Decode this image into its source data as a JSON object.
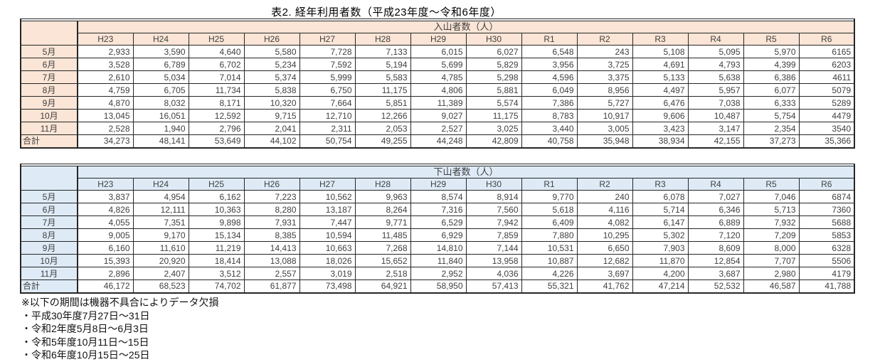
{
  "title": "表2. 経年利用者数（平成23年度～令和6年度）",
  "columns": [
    "H23",
    "H24",
    "H25",
    "H26",
    "H27",
    "H28",
    "H29",
    "H30",
    "R1",
    "R2",
    "R3",
    "R4",
    "R5",
    "R6"
  ],
  "tables": [
    {
      "title": "入山者数（人）",
      "rows": [
        {
          "label": "5月",
          "values": [
            "2,933",
            "3,590",
            "4,640",
            "5,580",
            "7,728",
            "7,133",
            "6,015",
            "6,027",
            "6,548",
            "243",
            "5,108",
            "5,095",
            "5,970",
            "6165"
          ]
        },
        {
          "label": "6月",
          "values": [
            "3,528",
            "6,789",
            "6,702",
            "5,234",
            "7,592",
            "5,194",
            "5,699",
            "5,829",
            "3,956",
            "3,725",
            "4,691",
            "4,793",
            "4,399",
            "6203"
          ]
        },
        {
          "label": "7月",
          "values": [
            "2,610",
            "5,034",
            "7,014",
            "5,374",
            "5,999",
            "5,583",
            "4,785",
            "5,298",
            "4,596",
            "3,375",
            "5,133",
            "5,638",
            "6,386",
            "4611"
          ]
        },
        {
          "label": "8月",
          "values": [
            "4,759",
            "6,705",
            "11,734",
            "5,838",
            "6,750",
            "11,175",
            "4,806",
            "5,881",
            "6,049",
            "8,956",
            "4,497",
            "5,957",
            "6,077",
            "5079"
          ]
        },
        {
          "label": "9月",
          "values": [
            "4,870",
            "8,032",
            "8,171",
            "10,320",
            "7,664",
            "5,851",
            "11,389",
            "5,574",
            "7,386",
            "5,727",
            "6,476",
            "7,038",
            "6,333",
            "5289"
          ]
        },
        {
          "label": "10月",
          "values": [
            "13,045",
            "16,051",
            "12,592",
            "9,715",
            "12,710",
            "12,266",
            "9,027",
            "11,175",
            "8,783",
            "10,917",
            "9,606",
            "10,487",
            "5,754",
            "4479"
          ]
        },
        {
          "label": "11月",
          "values": [
            "2,528",
            "1,940",
            "2,796",
            "2,041",
            "2,311",
            "2,053",
            "2,527",
            "3,025",
            "3,440",
            "3,005",
            "3,423",
            "3,147",
            "2,354",
            "3540"
          ]
        },
        {
          "label": "合計",
          "values": [
            "34,273",
            "48,141",
            "53,649",
            "44,102",
            "50,754",
            "49,255",
            "44,248",
            "42,809",
            "40,758",
            "35,948",
            "38,934",
            "42,155",
            "37,273",
            "35,366"
          ]
        }
      ]
    },
    {
      "title": "下山者数（人）",
      "rows": [
        {
          "label": "5月",
          "values": [
            "3,837",
            "4,954",
            "6,162",
            "7,223",
            "10,562",
            "9,963",
            "8,574",
            "8,914",
            "9,770",
            "240",
            "6,078",
            "7,027",
            "7,046",
            "6874"
          ]
        },
        {
          "label": "6月",
          "values": [
            "4,826",
            "12,111",
            "10,363",
            "8,280",
            "13,187",
            "8,264",
            "7,316",
            "7,560",
            "5,618",
            "4,116",
            "5,714",
            "6,346",
            "5,713",
            "7360"
          ]
        },
        {
          "label": "7月",
          "values": [
            "4,055",
            "7,351",
            "9,898",
            "7,931",
            "7,447",
            "9,771",
            "6,529",
            "7,942",
            "6,409",
            "4,082",
            "6,147",
            "6,889",
            "7,932",
            "5688"
          ]
        },
        {
          "label": "8月",
          "values": [
            "9,005",
            "9,170",
            "15,134",
            "8,385",
            "10,594",
            "11,485",
            "6,929",
            "7,859",
            "7,880",
            "10,295",
            "5,302",
            "7,120",
            "7,209",
            "5853"
          ]
        },
        {
          "label": "9月",
          "values": [
            "6,160",
            "11,610",
            "11,219",
            "14,413",
            "10,663",
            "7,268",
            "14,810",
            "7,144",
            "10,531",
            "6,650",
            "7,903",
            "8,609",
            "8,000",
            "6328"
          ]
        },
        {
          "label": "10月",
          "values": [
            "15,393",
            "20,920",
            "18,414",
            "13,088",
            "18,026",
            "15,652",
            "11,840",
            "13,958",
            "10,887",
            "12,682",
            "11,870",
            "12,854",
            "7,707",
            "5506"
          ]
        },
        {
          "label": "11月",
          "values": [
            "2,896",
            "2,407",
            "3,512",
            "2,557",
            "3,019",
            "2,518",
            "2,952",
            "4,036",
            "4,226",
            "3,697",
            "4,200",
            "3,687",
            "2,980",
            "4179"
          ]
        },
        {
          "label": "合計",
          "values": [
            "46,172",
            "68,523",
            "74,702",
            "61,877",
            "73,498",
            "64,921",
            "58,950",
            "57,413",
            "55,321",
            "41,762",
            "47,214",
            "52,532",
            "46,587",
            "41,788"
          ]
        }
      ]
    }
  ],
  "footnotes": [
    "※以下の期間は機器不具合によりデータ欠損",
    "・平成30年度7月27日～31日",
    "・令和2年度5月8日～6月3日",
    "・令和5年度10月11日～15日",
    "・令和6年度10月15日～25日"
  ],
  "colors": {
    "table1_fill": "#FBE5D6",
    "table2_fill": "#DEEBF7",
    "border": "#262626",
    "text": "#404040"
  }
}
